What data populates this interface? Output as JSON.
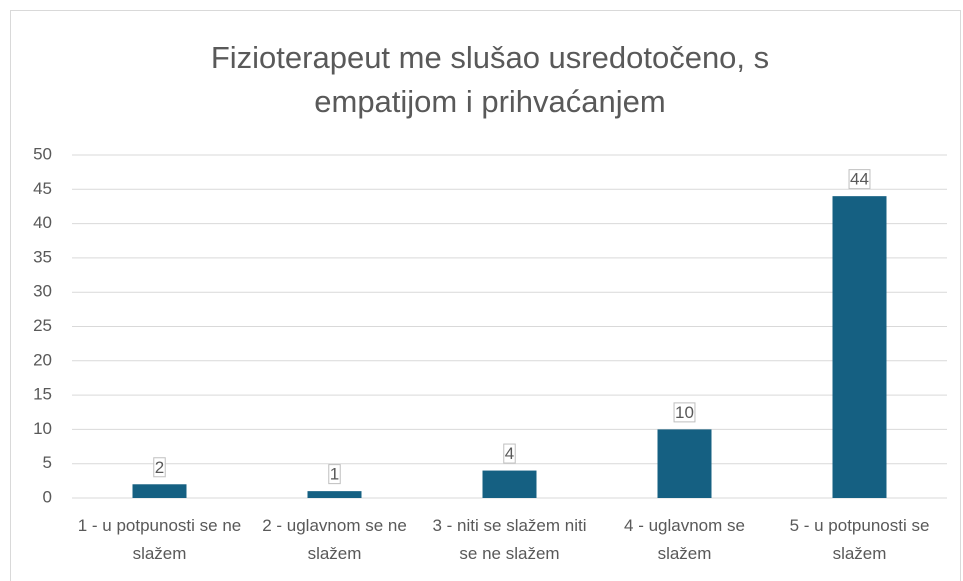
{
  "chart_data": {
    "type": "bar",
    "title": "Fizioterapeut me slušao usredotočeno, s empatijom i prihvaćanjem",
    "categories": [
      "1 - u potpunosti se ne slažem",
      "2 - uglavnom se ne slažem",
      "3 - niti se slažem niti se ne slažem",
      "4 - uglavnom se slažem",
      "5 - u potpunosti se slažem"
    ],
    "values": [
      2,
      1,
      4,
      10,
      44
    ],
    "color": "#156082",
    "ylim": [
      0,
      50
    ],
    "yticks": [
      0,
      5,
      10,
      15,
      20,
      25,
      30,
      35,
      40,
      45,
      50
    ],
    "grid": true
  }
}
